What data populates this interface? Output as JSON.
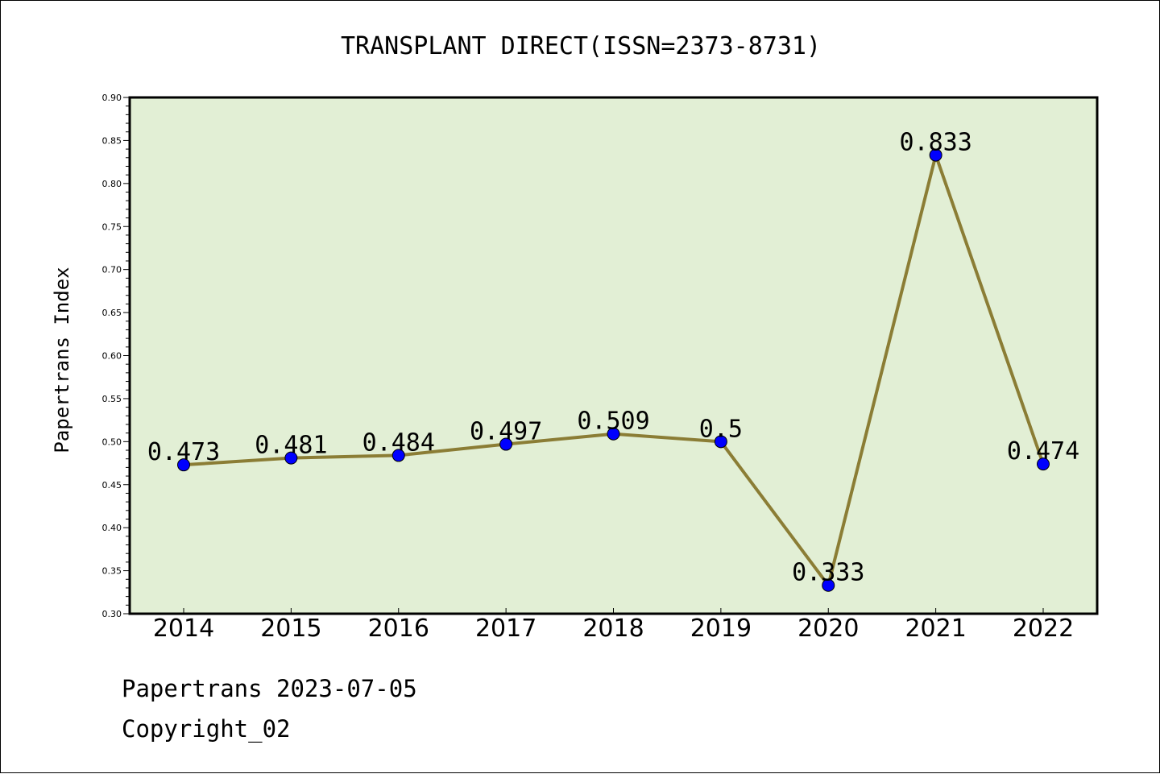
{
  "chart_data": {
    "type": "line",
    "title": "TRANSPLANT DIRECT(ISSN=2373-8731)",
    "xlabel": "",
    "ylabel": "Papertrans Index",
    "categories": [
      "2014",
      "2015",
      "2016",
      "2017",
      "2018",
      "2019",
      "2020",
      "2021",
      "2022"
    ],
    "series": [
      {
        "values": [
          0.473,
          0.481,
          0.484,
          0.497,
          0.509,
          0.5,
          0.333,
          0.833,
          0.474
        ],
        "data_labels": [
          "0.473",
          "0.481",
          "0.484",
          "0.497",
          "0.509",
          "0.5",
          "0.333",
          "0.833",
          "0.474"
        ],
        "line_color": "#8b7d35",
        "marker_color": "#0000ff"
      }
    ],
    "ylim": [
      0.3,
      0.9
    ],
    "yticks": [
      "0.30",
      "0.35",
      "0.40",
      "0.45",
      "0.50",
      "0.55",
      "0.60",
      "0.65",
      "0.70",
      "0.75",
      "0.80",
      "0.85",
      "0.90"
    ],
    "grid": false,
    "plot_background": "#e2efd5"
  },
  "footer": {
    "line1": "Papertrans 2023-07-05",
    "line2": "Copyright_02"
  }
}
